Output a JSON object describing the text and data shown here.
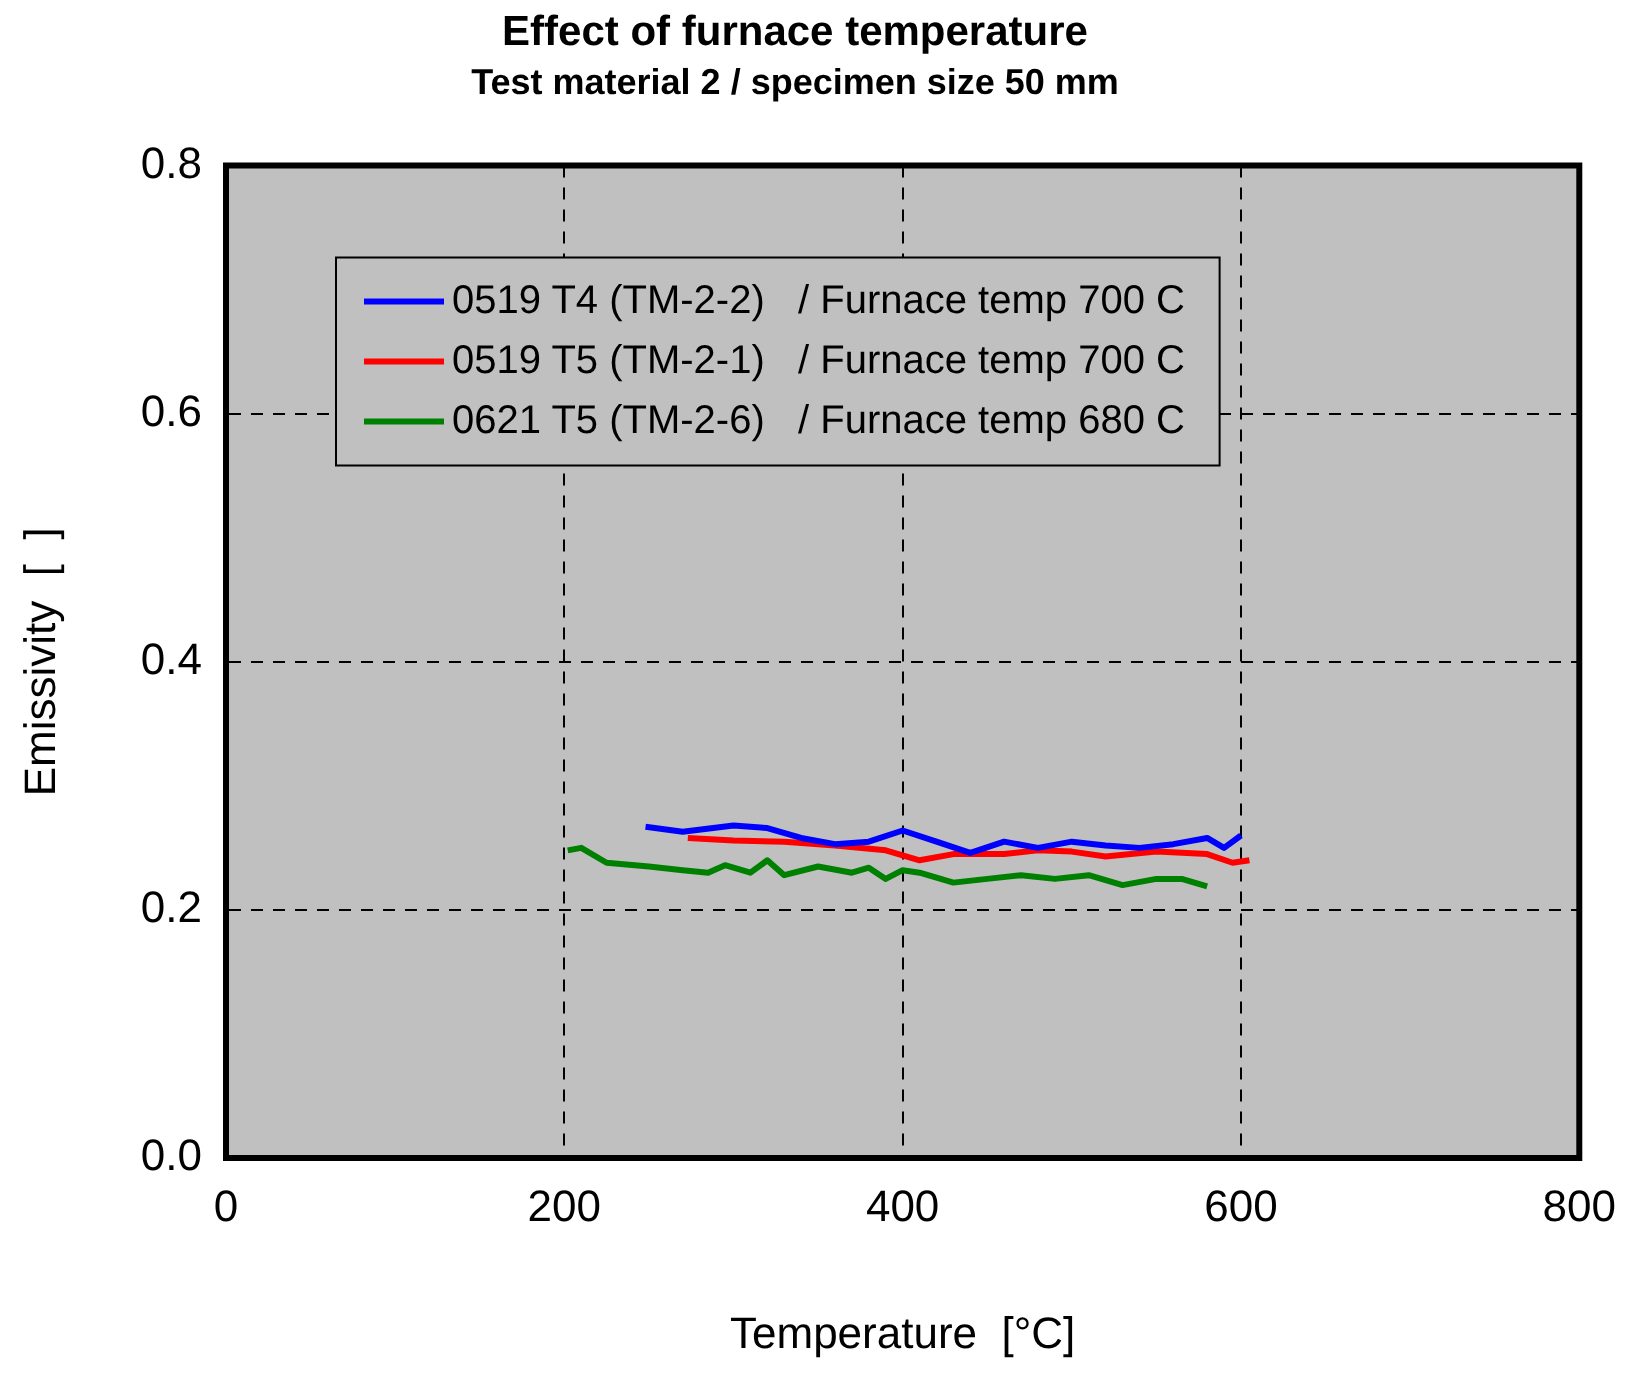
{
  "chart_data": {
    "type": "line",
    "title": "Effect of furnace temperature",
    "subtitle": "Test material 2 / specimen size 50 mm",
    "xlabel": "Temperature  [°C]",
    "ylabel": "Emissivity  [  ]",
    "xlim": [
      0,
      800
    ],
    "xticks": [
      0,
      200,
      400,
      600,
      800
    ],
    "ylim": [
      0,
      0.8
    ],
    "yticks": [
      {
        "value": 0,
        "label": "0.0"
      },
      0.2,
      0.4,
      0.6,
      0.8
    ],
    "grid": true,
    "legend": "top left",
    "marker": "none",
    "line_style": "solid",
    "series": [
      {
        "name": "0519 T4 (TM-2-2)   / Furnace temp 700 C",
        "color": "#0000ff",
        "x": [
          248,
          270,
          300,
          320,
          340,
          360,
          380,
          400,
          420,
          440,
          460,
          480,
          500,
          520,
          540,
          560,
          580,
          590,
          600
        ],
        "values": [
          0.267,
          0.263,
          0.268,
          0.266,
          0.258,
          0.253,
          0.255,
          0.264,
          0.255,
          0.246,
          0.255,
          0.25,
          0.255,
          0.252,
          0.25,
          0.253,
          0.258,
          0.25,
          0.26
        ]
      },
      {
        "name": "0519 T5 (TM-2-1)   / Furnace temp 700 C",
        "color": "#ff0000",
        "x": [
          273,
          300,
          330,
          360,
          390,
          410,
          430,
          460,
          480,
          500,
          520,
          550,
          580,
          595,
          605
        ],
        "values": [
          0.258,
          0.256,
          0.255,
          0.252,
          0.248,
          0.24,
          0.245,
          0.245,
          0.248,
          0.247,
          0.243,
          0.247,
          0.245,
          0.238,
          0.24
        ]
      },
      {
        "name": "0621 T5 (TM-2-6)   / Furnace temp 680 C",
        "color": "#008000",
        "x": [
          202,
          210,
          225,
          250,
          270,
          285,
          295,
          310,
          320,
          330,
          350,
          370,
          380,
          390,
          400,
          410,
          430,
          450,
          470,
          490,
          510,
          530,
          550,
          565,
          580
        ],
        "values": [
          0.248,
          0.25,
          0.238,
          0.235,
          0.232,
          0.23,
          0.236,
          0.23,
          0.24,
          0.228,
          0.235,
          0.23,
          0.234,
          0.225,
          0.232,
          0.23,
          0.222,
          0.225,
          0.228,
          0.225,
          0.228,
          0.22,
          0.225,
          0.225,
          0.219
        ]
      }
    ]
  }
}
